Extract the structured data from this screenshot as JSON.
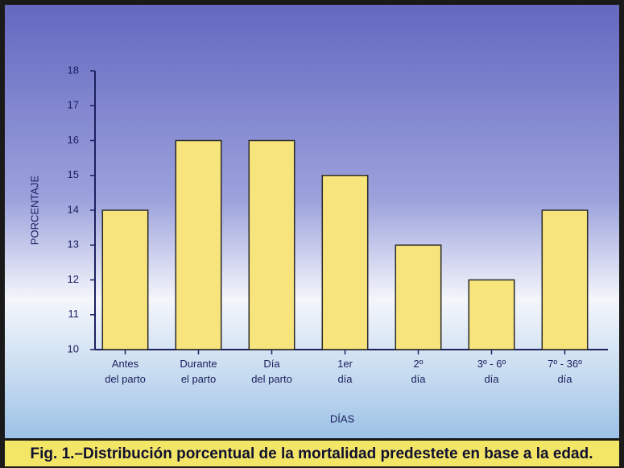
{
  "chart_data": {
    "type": "bar",
    "caption": "Fig. 1.–Distribución porcentual de la mortalidad predestete en base a la edad.",
    "x_label": "DÍAS",
    "y_label": "PORCENTAJE",
    "categories": [
      [
        "Antes",
        "del parto"
      ],
      [
        "Durante",
        "el parto"
      ],
      [
        "Día",
        "del parto"
      ],
      [
        "1er",
        "día"
      ],
      [
        "2º",
        "día"
      ],
      [
        "3º - 6º",
        "día"
      ],
      [
        "7º - 36º",
        "día"
      ]
    ],
    "values": [
      14,
      16,
      16,
      15,
      13,
      12,
      14
    ],
    "color": "#f8e47c",
    "ylim": [
      10,
      18
    ],
    "yticks": [
      10,
      11,
      12,
      13,
      14,
      15,
      16,
      17,
      18
    ]
  }
}
